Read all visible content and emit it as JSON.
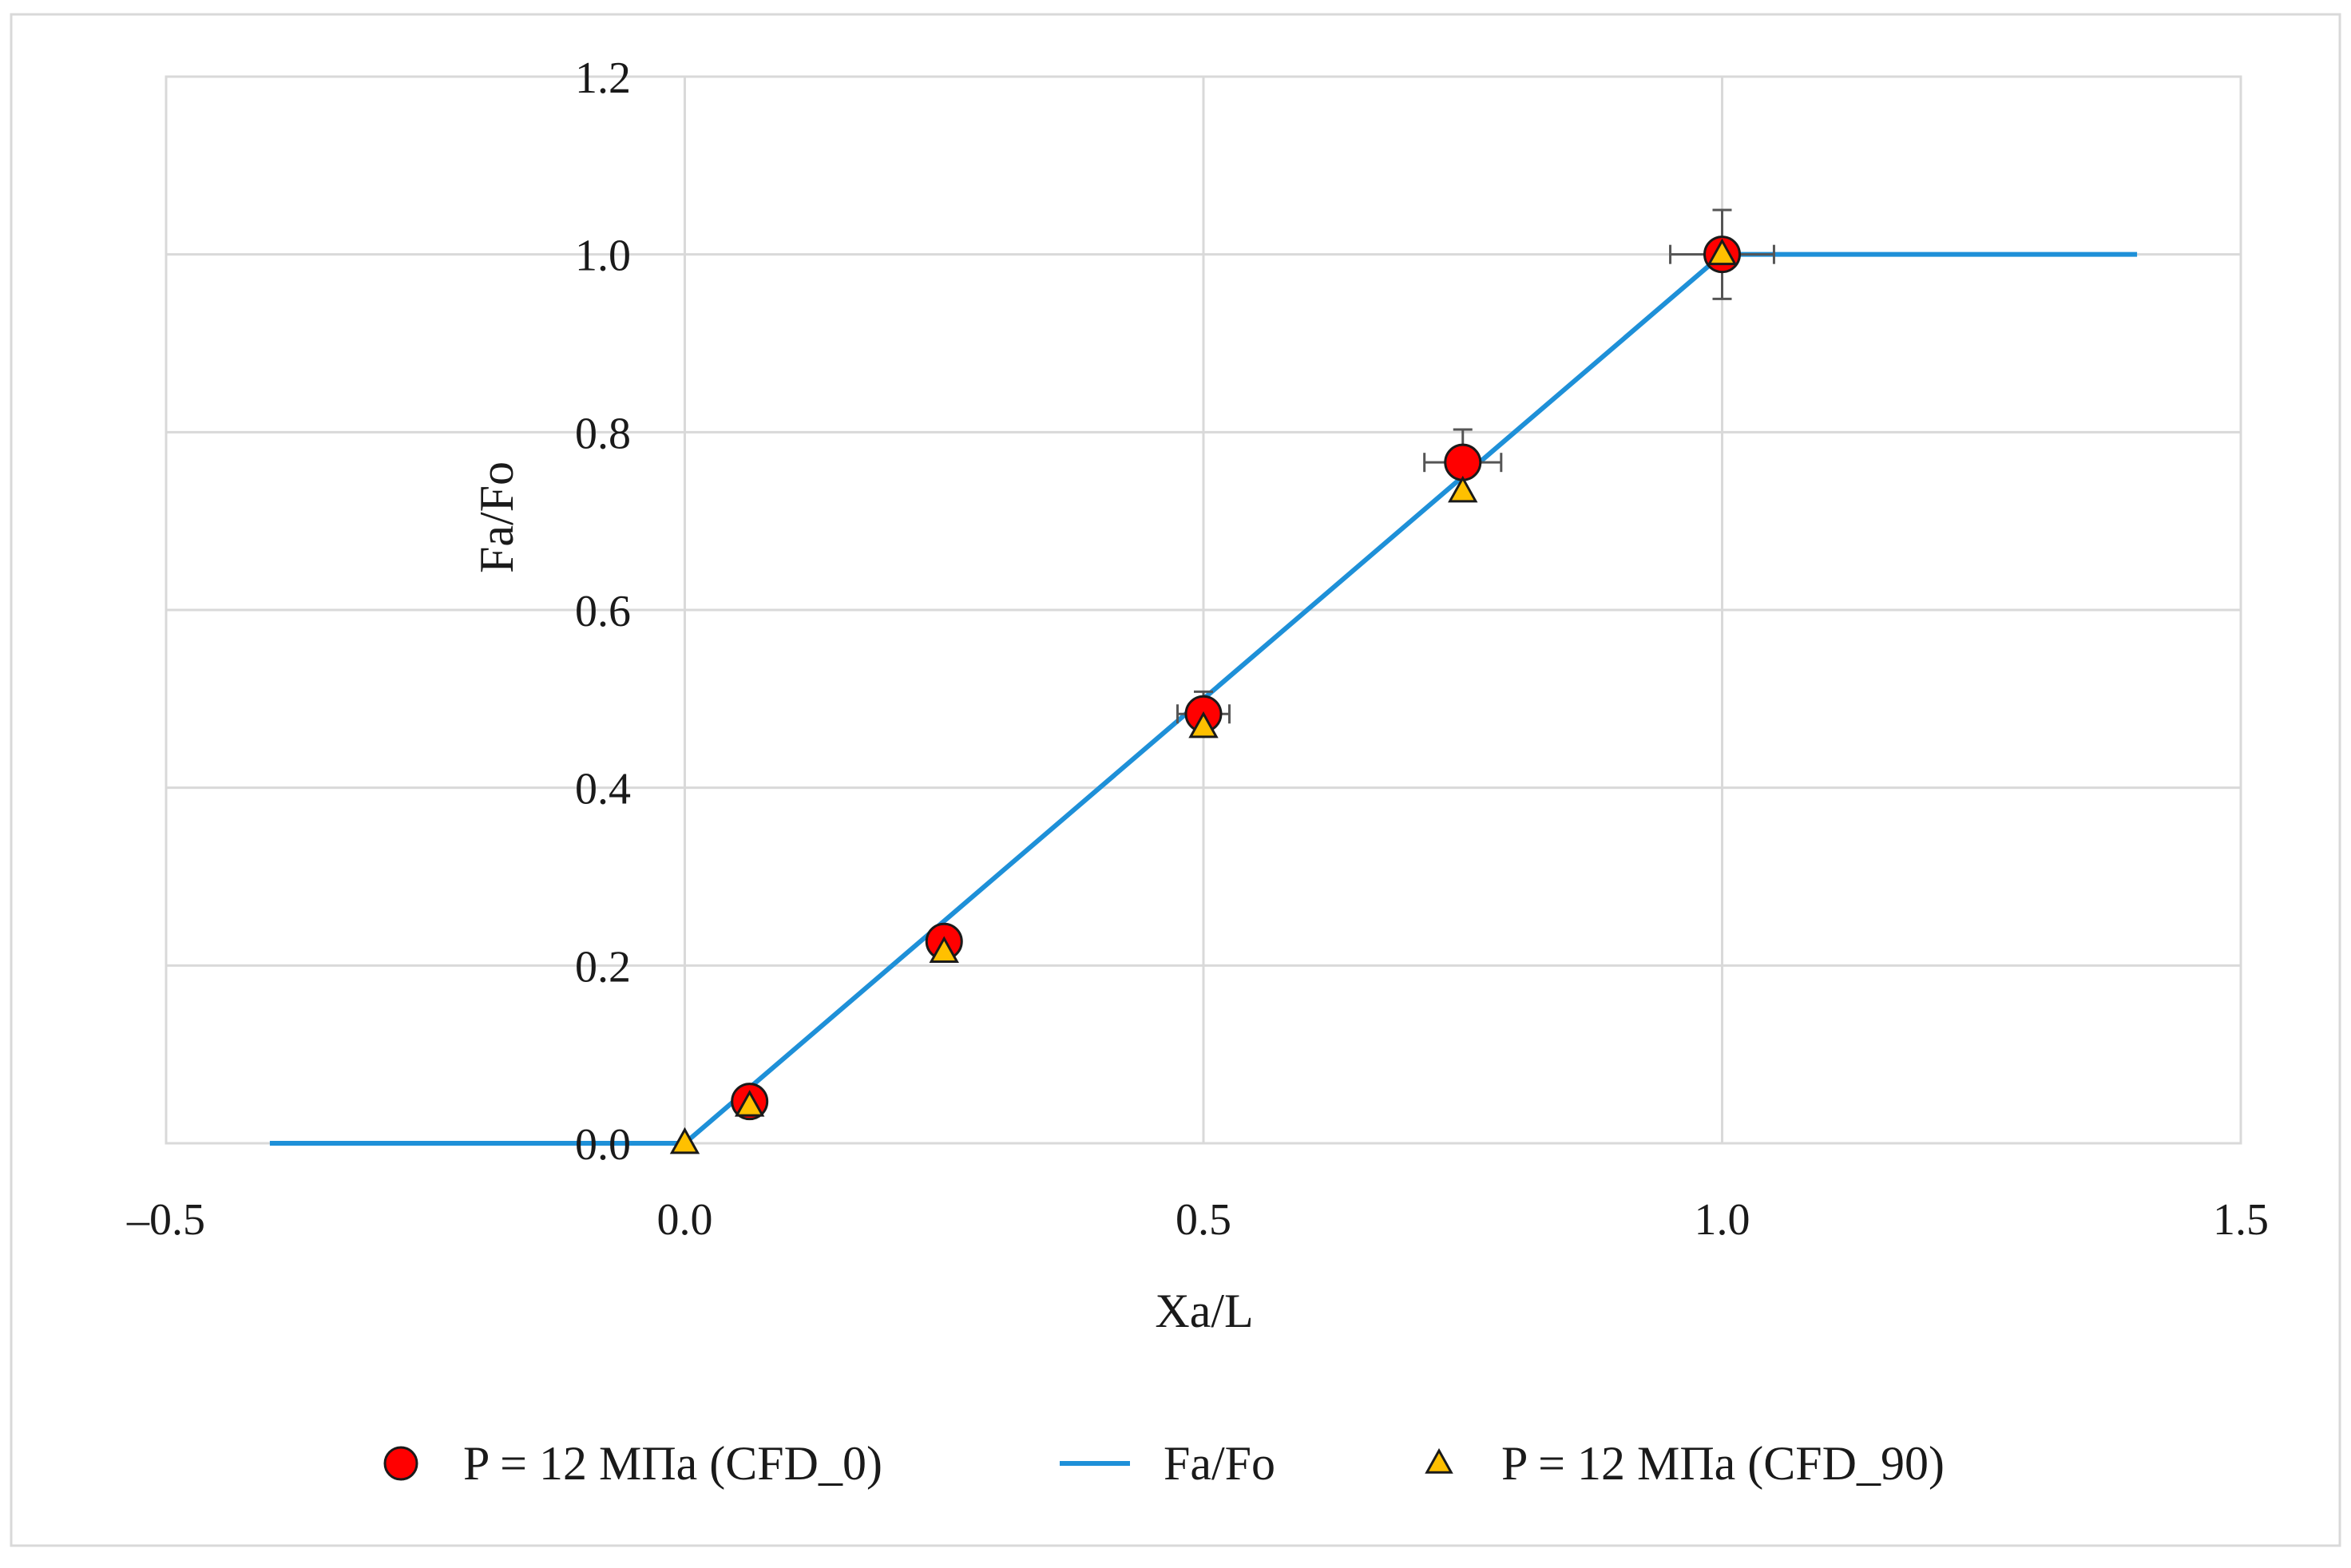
{
  "chart_data": {
    "type": "scatter",
    "title": "",
    "xlabel": "Xa/L",
    "ylabel": "Fa/Fo",
    "xlim": [
      -0.5,
      1.5
    ],
    "ylim": [
      0.0,
      1.2
    ],
    "grid": true,
    "legend_position": "bottom",
    "x_ticks": [
      -0.5,
      0.0,
      0.5,
      1.0,
      1.5
    ],
    "x_tick_labels": [
      "–0.5",
      "0.0",
      "0.5",
      "1.0",
      "1.5"
    ],
    "y_ticks": [
      0.0,
      0.2,
      0.4,
      0.6,
      0.8,
      1.0,
      1.2
    ],
    "y_tick_labels": [
      "0.0",
      "0.2",
      "0.4",
      "0.6",
      "0.8",
      "1.0",
      "1.2"
    ],
    "series": [
      {
        "name": "P = 12 МПа (CFD_0)",
        "kind": "scatter",
        "marker": "circle",
        "color": "#ff0000",
        "x": [
          0.0625,
          0.25,
          0.5,
          0.75,
          1.0
        ],
        "y": [
          0.047,
          0.227,
          0.483,
          0.766,
          1.0
        ],
        "x_err": [
          0,
          0,
          0.025,
          0.037,
          0.05
        ],
        "y_err": [
          0,
          0,
          0.025,
          0.037,
          0.05
        ]
      },
      {
        "name": "Fa/Fo",
        "kind": "line",
        "color": "#1e90d8",
        "x": [
          -0.4,
          0.0,
          1.0,
          1.4
        ],
        "y": [
          0.0,
          0.0,
          1.0,
          1.0
        ]
      },
      {
        "name": "P = 12 МПа (CFD_90)",
        "kind": "scatter",
        "marker": "triangle",
        "color": "#ffc000",
        "x": [
          0.0,
          0.0625,
          0.25,
          0.5,
          0.75,
          1.0
        ],
        "y": [
          0.0,
          0.042,
          0.215,
          0.468,
          0.733,
          1.0
        ],
        "x_err": [
          0,
          0,
          0,
          0,
          0,
          0
        ],
        "y_err": [
          0,
          0,
          0,
          0,
          0,
          0
        ]
      }
    ]
  }
}
